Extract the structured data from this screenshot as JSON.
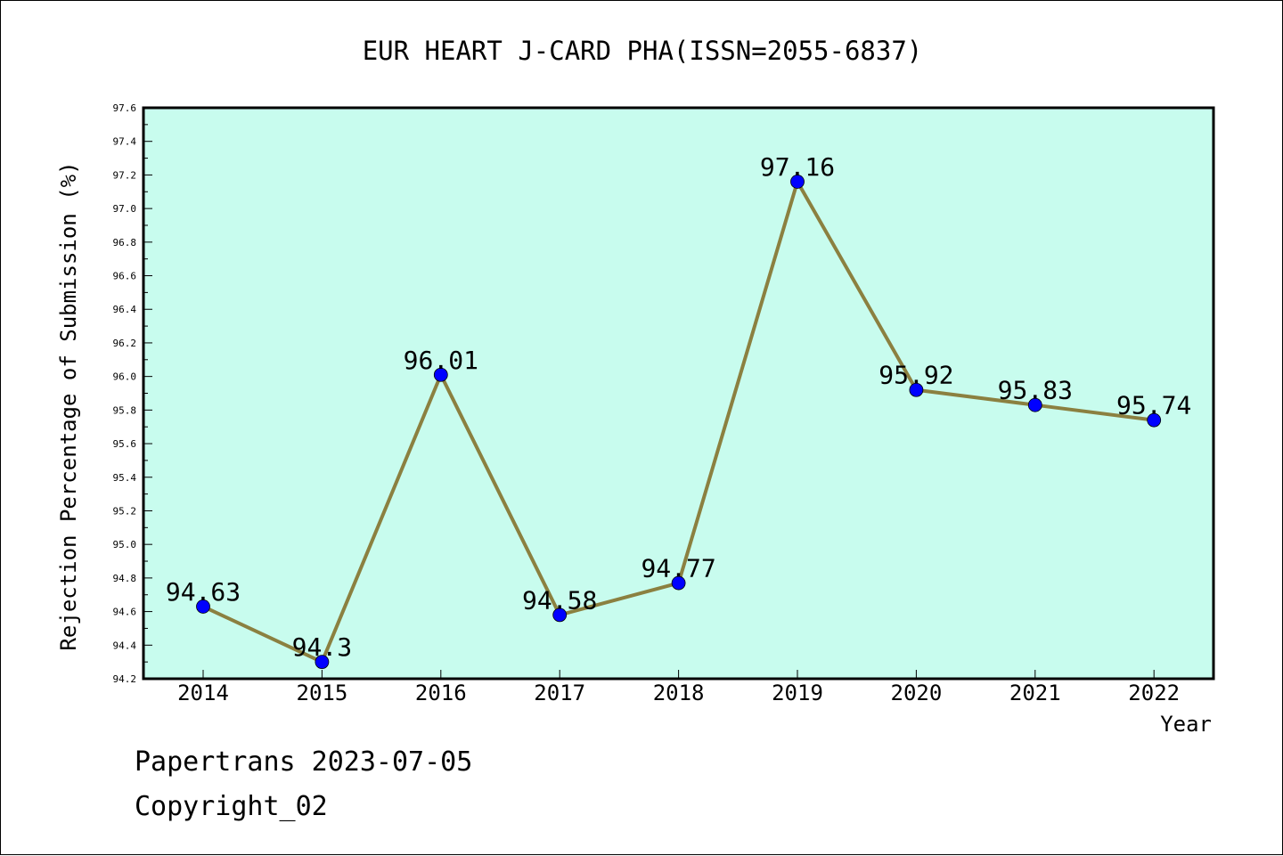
{
  "chart_data": {
    "type": "line",
    "title": "EUR HEART J-CARD PHA(ISSN=2055-6837)",
    "xlabel": "Year",
    "ylabel": "Rejection Percentage of Submission (%)",
    "ylim": [
      94.2,
      97.6
    ],
    "ytick_step": 0.2,
    "categories": [
      "2014",
      "2015",
      "2016",
      "2017",
      "2018",
      "2019",
      "2020",
      "2021",
      "2022"
    ],
    "series": [
      {
        "values": [
          94.63,
          94.3,
          96.01,
          94.58,
          94.77,
          97.16,
          95.92,
          95.83,
          95.74
        ],
        "labels": [
          "94.63",
          "94.3",
          "96.01",
          "94.58",
          "94.77",
          "97.16",
          "95.92",
          "95.83",
          "95.74"
        ]
      }
    ],
    "grid": false,
    "colors": {
      "plot_background": "#c8fcee",
      "line": "#8b8040",
      "marker": "#0000ff"
    }
  },
  "footer": {
    "line1": "Papertrans 2023-07-05",
    "line2": "Copyright_02"
  }
}
